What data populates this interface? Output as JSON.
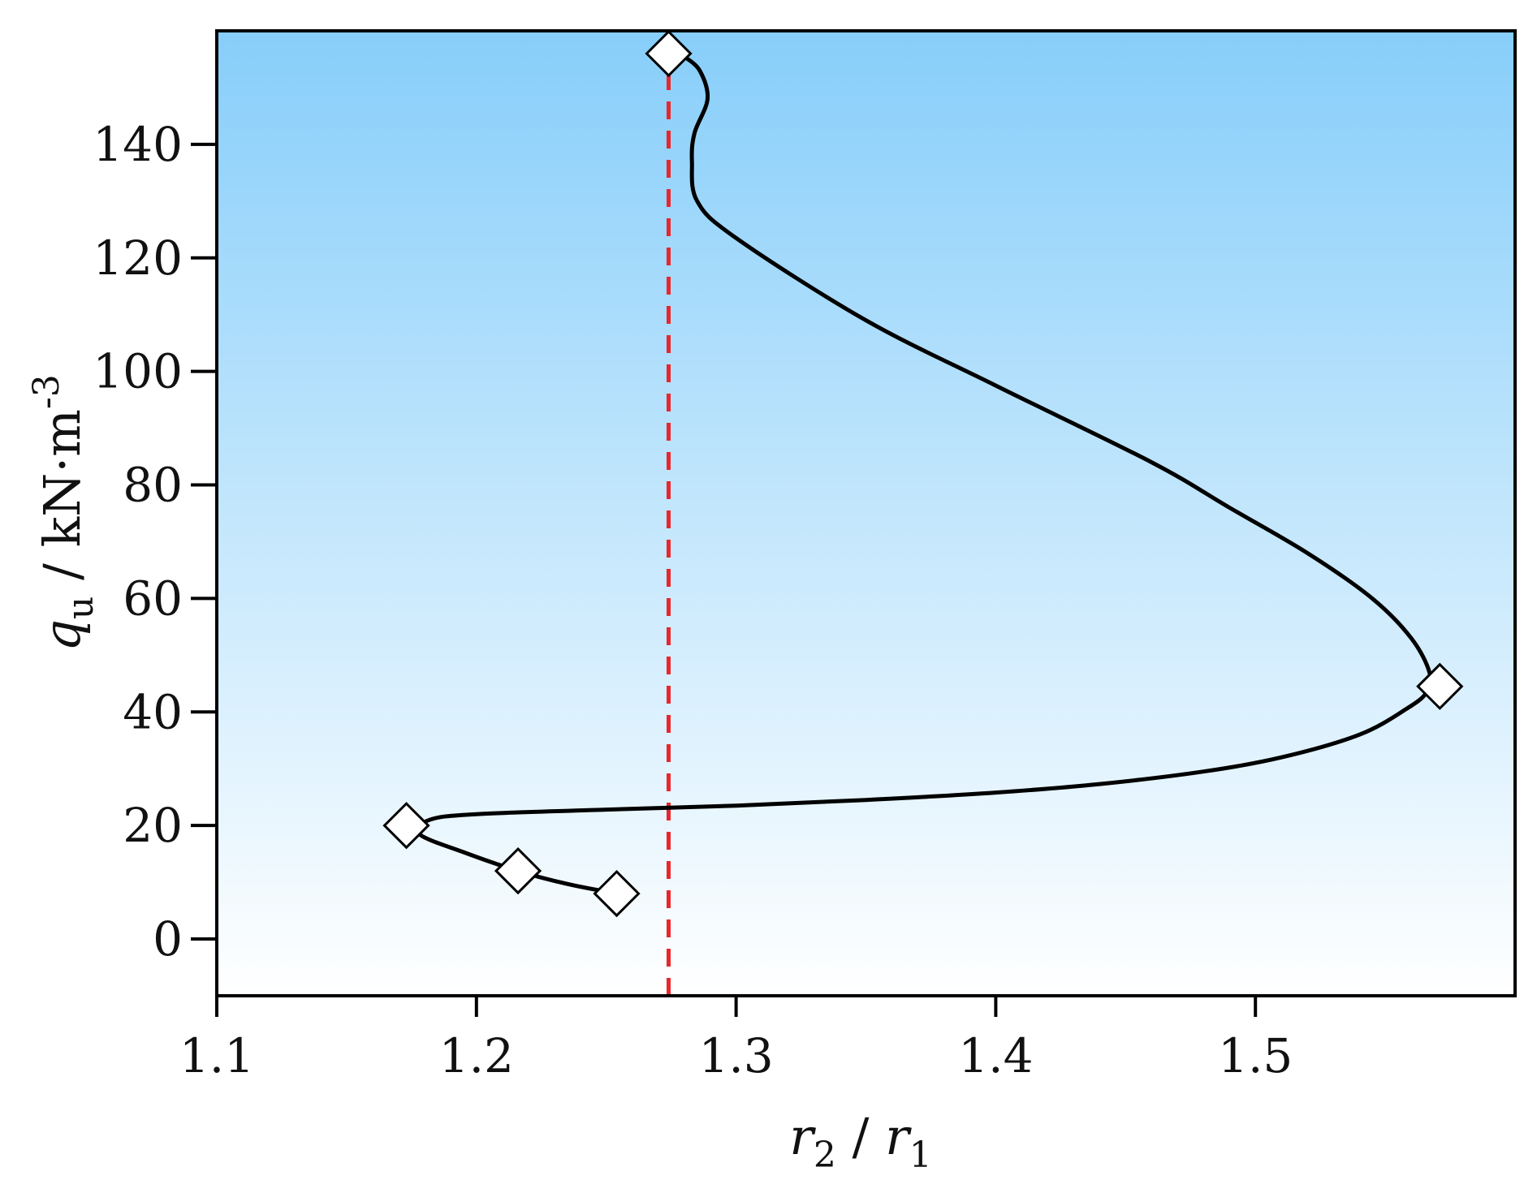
{
  "chart_data": {
    "type": "line",
    "xlabel": {
      "var": "r",
      "sub1": "2",
      "sep": " / ",
      "var2": "r",
      "sub2": "1"
    },
    "ylabel": {
      "var": "q",
      "sub": "u",
      "unit": " / kN·m",
      "sup": "-3"
    },
    "xlim": [
      1.1,
      1.6
    ],
    "ylim": [
      -10,
      160
    ],
    "xticks": [
      1.1,
      1.2,
      1.3,
      1.4,
      1.5
    ],
    "xtick_labels": [
      "1.1",
      "1.2",
      "1.3",
      "1.4",
      "1.5"
    ],
    "yticks": [
      0,
      20,
      40,
      60,
      80,
      100,
      120,
      140
    ],
    "ytick_labels": [
      "0",
      "20",
      "40",
      "60",
      "80",
      "100",
      "120",
      "140"
    ],
    "grid": false,
    "background_gradient": [
      "#87cefa",
      "#ffffff"
    ],
    "series": [
      {
        "marker": "diamond",
        "line_color": "#000000",
        "marker_fill": "#ffffff",
        "points": [
          {
            "x": 1.254,
            "y": 8
          },
          {
            "x": 1.216,
            "y": 12
          },
          {
            "x": 1.173,
            "y": 20
          },
          {
            "x": 1.571,
            "y": 44.5
          },
          {
            "x": 1.274,
            "y": 156
          }
        ],
        "curve": [
          [
            1.254,
            8
          ],
          [
            1.235,
            9.7
          ],
          [
            1.216,
            12
          ],
          [
            1.195,
            15.3
          ],
          [
            1.178,
            18.5
          ],
          [
            1.182,
            21
          ],
          [
            1.2,
            22
          ],
          [
            1.25,
            22.8
          ],
          [
            1.3,
            23.5
          ],
          [
            1.35,
            24.5
          ],
          [
            1.4,
            25.8
          ],
          [
            1.44,
            27.3
          ],
          [
            1.48,
            29.5
          ],
          [
            1.51,
            32
          ],
          [
            1.54,
            36
          ],
          [
            1.558,
            40.5
          ],
          [
            1.566,
            43.5
          ],
          [
            1.567,
            47
          ],
          [
            1.56,
            53
          ],
          [
            1.545,
            60
          ],
          [
            1.52,
            68
          ],
          [
            1.49,
            76
          ],
          [
            1.46,
            84
          ],
          [
            1.4,
            97.5
          ],
          [
            1.35,
            109
          ],
          [
            1.3,
            123.5
          ],
          [
            1.285,
            130
          ],
          [
            1.283,
            137
          ],
          [
            1.284,
            142
          ],
          [
            1.289,
            148
          ],
          [
            1.286,
            153
          ],
          [
            1.28,
            155.5
          ]
        ]
      }
    ],
    "reference_line": {
      "orientation": "vertical",
      "x": 1.274,
      "y_from": -10,
      "y_to": 156,
      "color": "#e8262b",
      "style": "dashed"
    }
  }
}
